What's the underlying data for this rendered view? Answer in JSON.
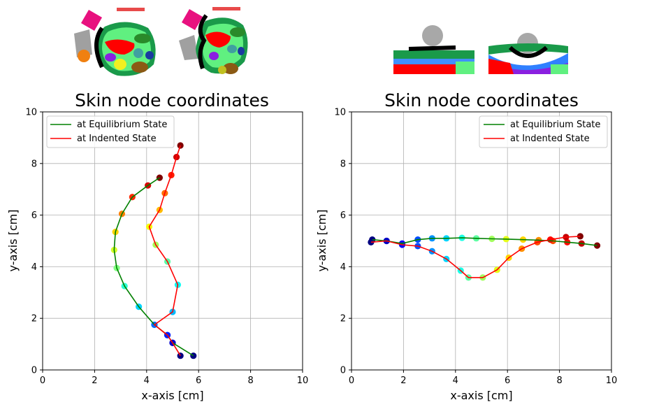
{
  "chart_data": [
    {
      "type": "line",
      "title": "Skin node coordinates",
      "xlabel": "x-axis [cm]",
      "ylabel": "y-axis [cm]",
      "xlim": [
        0,
        10
      ],
      "ylim": [
        0,
        10
      ],
      "xticks": [
        "0",
        "2",
        "4",
        "6",
        "8",
        "10"
      ],
      "yticks": [
        "0",
        "2",
        "4",
        "6",
        "8",
        "10"
      ],
      "grid": true,
      "legend_position": "top-left",
      "series": [
        {
          "name": "at Equilibrium State",
          "color": "#008000",
          "points": [
            [
              5.8,
              0.55
            ],
            [
              5.0,
              1.05
            ],
            [
              4.8,
              1.35
            ],
            [
              4.3,
              1.75
            ],
            [
              3.7,
              2.45
            ],
            [
              3.15,
              3.25
            ],
            [
              2.85,
              3.95
            ],
            [
              2.75,
              4.65
            ],
            [
              2.8,
              5.35
            ],
            [
              3.05,
              6.05
            ],
            [
              3.45,
              6.7
            ],
            [
              4.05,
              7.15
            ],
            [
              4.5,
              7.45
            ]
          ]
        },
        {
          "name": "at Indented State",
          "color": "#ff0000",
          "points": [
            [
              5.3,
              0.55
            ],
            [
              5.0,
              1.05
            ],
            [
              4.8,
              1.35
            ],
            [
              4.3,
              1.75
            ],
            [
              5.0,
              2.25
            ],
            [
              5.2,
              3.3
            ],
            [
              4.8,
              4.2
            ],
            [
              4.35,
              4.85
            ],
            [
              4.1,
              5.55
            ],
            [
              4.5,
              6.2
            ],
            [
              4.7,
              6.85
            ],
            [
              4.95,
              7.55
            ],
            [
              5.15,
              8.25
            ],
            [
              5.3,
              8.7
            ]
          ]
        }
      ]
    },
    {
      "type": "line",
      "title": "Skin node coordinates",
      "xlabel": "x-axis [cm]",
      "ylabel": "y-axis [cm]",
      "xlim": [
        0,
        10
      ],
      "ylim": [
        0,
        10
      ],
      "xticks": [
        "0",
        "2",
        "4",
        "6",
        "8",
        "10"
      ],
      "yticks": [
        "0",
        "2",
        "4",
        "6",
        "8",
        "10"
      ],
      "grid": true,
      "legend_position": "top-right",
      "series": [
        {
          "name": "at Equilibrium State",
          "color": "#008000",
          "points": [
            [
              0.8,
              5.05
            ],
            [
              1.35,
              5.0
            ],
            [
              1.95,
              4.9
            ],
            [
              2.55,
              5.05
            ],
            [
              3.1,
              5.1
            ],
            [
              3.65,
              5.1
            ],
            [
              4.25,
              5.12
            ],
            [
              4.8,
              5.1
            ],
            [
              5.4,
              5.08
            ],
            [
              5.95,
              5.07
            ],
            [
              6.6,
              5.05
            ],
            [
              7.2,
              5.03
            ],
            [
              7.75,
              5.0
            ],
            [
              8.3,
              4.95
            ],
            [
              8.85,
              4.9
            ],
            [
              9.45,
              4.82
            ]
          ]
        },
        {
          "name": "at Indented State",
          "color": "#ff0000",
          "points": [
            [
              0.75,
              4.95
            ],
            [
              1.35,
              5.0
            ],
            [
              1.95,
              4.85
            ],
            [
              2.55,
              4.8
            ],
            [
              3.1,
              4.6
            ],
            [
              3.65,
              4.3
            ],
            [
              4.2,
              3.85
            ],
            [
              4.5,
              3.58
            ],
            [
              5.05,
              3.58
            ],
            [
              5.6,
              3.88
            ],
            [
              6.05,
              4.35
            ],
            [
              6.55,
              4.7
            ],
            [
              7.15,
              4.95
            ],
            [
              7.65,
              5.05
            ],
            [
              8.25,
              5.15
            ],
            [
              8.8,
              5.18
            ]
          ]
        }
      ]
    }
  ],
  "legend_labels": [
    "at Equilibrium State",
    "at Indented State"
  ]
}
